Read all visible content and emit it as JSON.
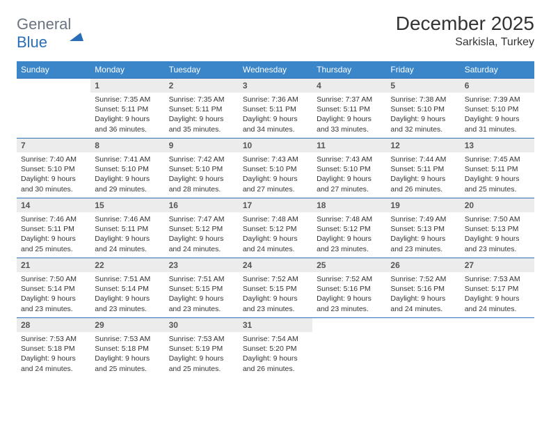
{
  "logo": {
    "part1": "General",
    "part2": "Blue"
  },
  "title": "December 2025",
  "subtitle": "Sarkisla, Turkey",
  "colors": {
    "header_bg": "#3a86c8",
    "header_text": "#ffffff",
    "row_border": "#2a6db8",
    "daynum_bg": "#ececec",
    "text": "#333333"
  },
  "day_headers": [
    "Sunday",
    "Monday",
    "Tuesday",
    "Wednesday",
    "Thursday",
    "Friday",
    "Saturday"
  ],
  "weeks": [
    [
      {
        "n": "",
        "sr": "",
        "ss": "",
        "dl": "",
        "empty": true
      },
      {
        "n": "1",
        "sr": "Sunrise: 7:35 AM",
        "ss": "Sunset: 5:11 PM",
        "dl": "Daylight: 9 hours and 36 minutes."
      },
      {
        "n": "2",
        "sr": "Sunrise: 7:35 AM",
        "ss": "Sunset: 5:11 PM",
        "dl": "Daylight: 9 hours and 35 minutes."
      },
      {
        "n": "3",
        "sr": "Sunrise: 7:36 AM",
        "ss": "Sunset: 5:11 PM",
        "dl": "Daylight: 9 hours and 34 minutes."
      },
      {
        "n": "4",
        "sr": "Sunrise: 7:37 AM",
        "ss": "Sunset: 5:11 PM",
        "dl": "Daylight: 9 hours and 33 minutes."
      },
      {
        "n": "5",
        "sr": "Sunrise: 7:38 AM",
        "ss": "Sunset: 5:10 PM",
        "dl": "Daylight: 9 hours and 32 minutes."
      },
      {
        "n": "6",
        "sr": "Sunrise: 7:39 AM",
        "ss": "Sunset: 5:10 PM",
        "dl": "Daylight: 9 hours and 31 minutes."
      }
    ],
    [
      {
        "n": "7",
        "sr": "Sunrise: 7:40 AM",
        "ss": "Sunset: 5:10 PM",
        "dl": "Daylight: 9 hours and 30 minutes."
      },
      {
        "n": "8",
        "sr": "Sunrise: 7:41 AM",
        "ss": "Sunset: 5:10 PM",
        "dl": "Daylight: 9 hours and 29 minutes."
      },
      {
        "n": "9",
        "sr": "Sunrise: 7:42 AM",
        "ss": "Sunset: 5:10 PM",
        "dl": "Daylight: 9 hours and 28 minutes."
      },
      {
        "n": "10",
        "sr": "Sunrise: 7:43 AM",
        "ss": "Sunset: 5:10 PM",
        "dl": "Daylight: 9 hours and 27 minutes."
      },
      {
        "n": "11",
        "sr": "Sunrise: 7:43 AM",
        "ss": "Sunset: 5:10 PM",
        "dl": "Daylight: 9 hours and 27 minutes."
      },
      {
        "n": "12",
        "sr": "Sunrise: 7:44 AM",
        "ss": "Sunset: 5:11 PM",
        "dl": "Daylight: 9 hours and 26 minutes."
      },
      {
        "n": "13",
        "sr": "Sunrise: 7:45 AM",
        "ss": "Sunset: 5:11 PM",
        "dl": "Daylight: 9 hours and 25 minutes."
      }
    ],
    [
      {
        "n": "14",
        "sr": "Sunrise: 7:46 AM",
        "ss": "Sunset: 5:11 PM",
        "dl": "Daylight: 9 hours and 25 minutes."
      },
      {
        "n": "15",
        "sr": "Sunrise: 7:46 AM",
        "ss": "Sunset: 5:11 PM",
        "dl": "Daylight: 9 hours and 24 minutes."
      },
      {
        "n": "16",
        "sr": "Sunrise: 7:47 AM",
        "ss": "Sunset: 5:12 PM",
        "dl": "Daylight: 9 hours and 24 minutes."
      },
      {
        "n": "17",
        "sr": "Sunrise: 7:48 AM",
        "ss": "Sunset: 5:12 PM",
        "dl": "Daylight: 9 hours and 24 minutes."
      },
      {
        "n": "18",
        "sr": "Sunrise: 7:48 AM",
        "ss": "Sunset: 5:12 PM",
        "dl": "Daylight: 9 hours and 23 minutes."
      },
      {
        "n": "19",
        "sr": "Sunrise: 7:49 AM",
        "ss": "Sunset: 5:13 PM",
        "dl": "Daylight: 9 hours and 23 minutes."
      },
      {
        "n": "20",
        "sr": "Sunrise: 7:50 AM",
        "ss": "Sunset: 5:13 PM",
        "dl": "Daylight: 9 hours and 23 minutes."
      }
    ],
    [
      {
        "n": "21",
        "sr": "Sunrise: 7:50 AM",
        "ss": "Sunset: 5:14 PM",
        "dl": "Daylight: 9 hours and 23 minutes."
      },
      {
        "n": "22",
        "sr": "Sunrise: 7:51 AM",
        "ss": "Sunset: 5:14 PM",
        "dl": "Daylight: 9 hours and 23 minutes."
      },
      {
        "n": "23",
        "sr": "Sunrise: 7:51 AM",
        "ss": "Sunset: 5:15 PM",
        "dl": "Daylight: 9 hours and 23 minutes."
      },
      {
        "n": "24",
        "sr": "Sunrise: 7:52 AM",
        "ss": "Sunset: 5:15 PM",
        "dl": "Daylight: 9 hours and 23 minutes."
      },
      {
        "n": "25",
        "sr": "Sunrise: 7:52 AM",
        "ss": "Sunset: 5:16 PM",
        "dl": "Daylight: 9 hours and 23 minutes."
      },
      {
        "n": "26",
        "sr": "Sunrise: 7:52 AM",
        "ss": "Sunset: 5:16 PM",
        "dl": "Daylight: 9 hours and 24 minutes."
      },
      {
        "n": "27",
        "sr": "Sunrise: 7:53 AM",
        "ss": "Sunset: 5:17 PM",
        "dl": "Daylight: 9 hours and 24 minutes."
      }
    ],
    [
      {
        "n": "28",
        "sr": "Sunrise: 7:53 AM",
        "ss": "Sunset: 5:18 PM",
        "dl": "Daylight: 9 hours and 24 minutes."
      },
      {
        "n": "29",
        "sr": "Sunrise: 7:53 AM",
        "ss": "Sunset: 5:18 PM",
        "dl": "Daylight: 9 hours and 25 minutes."
      },
      {
        "n": "30",
        "sr": "Sunrise: 7:53 AM",
        "ss": "Sunset: 5:19 PM",
        "dl": "Daylight: 9 hours and 25 minutes."
      },
      {
        "n": "31",
        "sr": "Sunrise: 7:54 AM",
        "ss": "Sunset: 5:20 PM",
        "dl": "Daylight: 9 hours and 26 minutes."
      },
      {
        "n": "",
        "sr": "",
        "ss": "",
        "dl": "",
        "empty": true
      },
      {
        "n": "",
        "sr": "",
        "ss": "",
        "dl": "",
        "empty": true
      },
      {
        "n": "",
        "sr": "",
        "ss": "",
        "dl": "",
        "empty": true
      }
    ]
  ]
}
